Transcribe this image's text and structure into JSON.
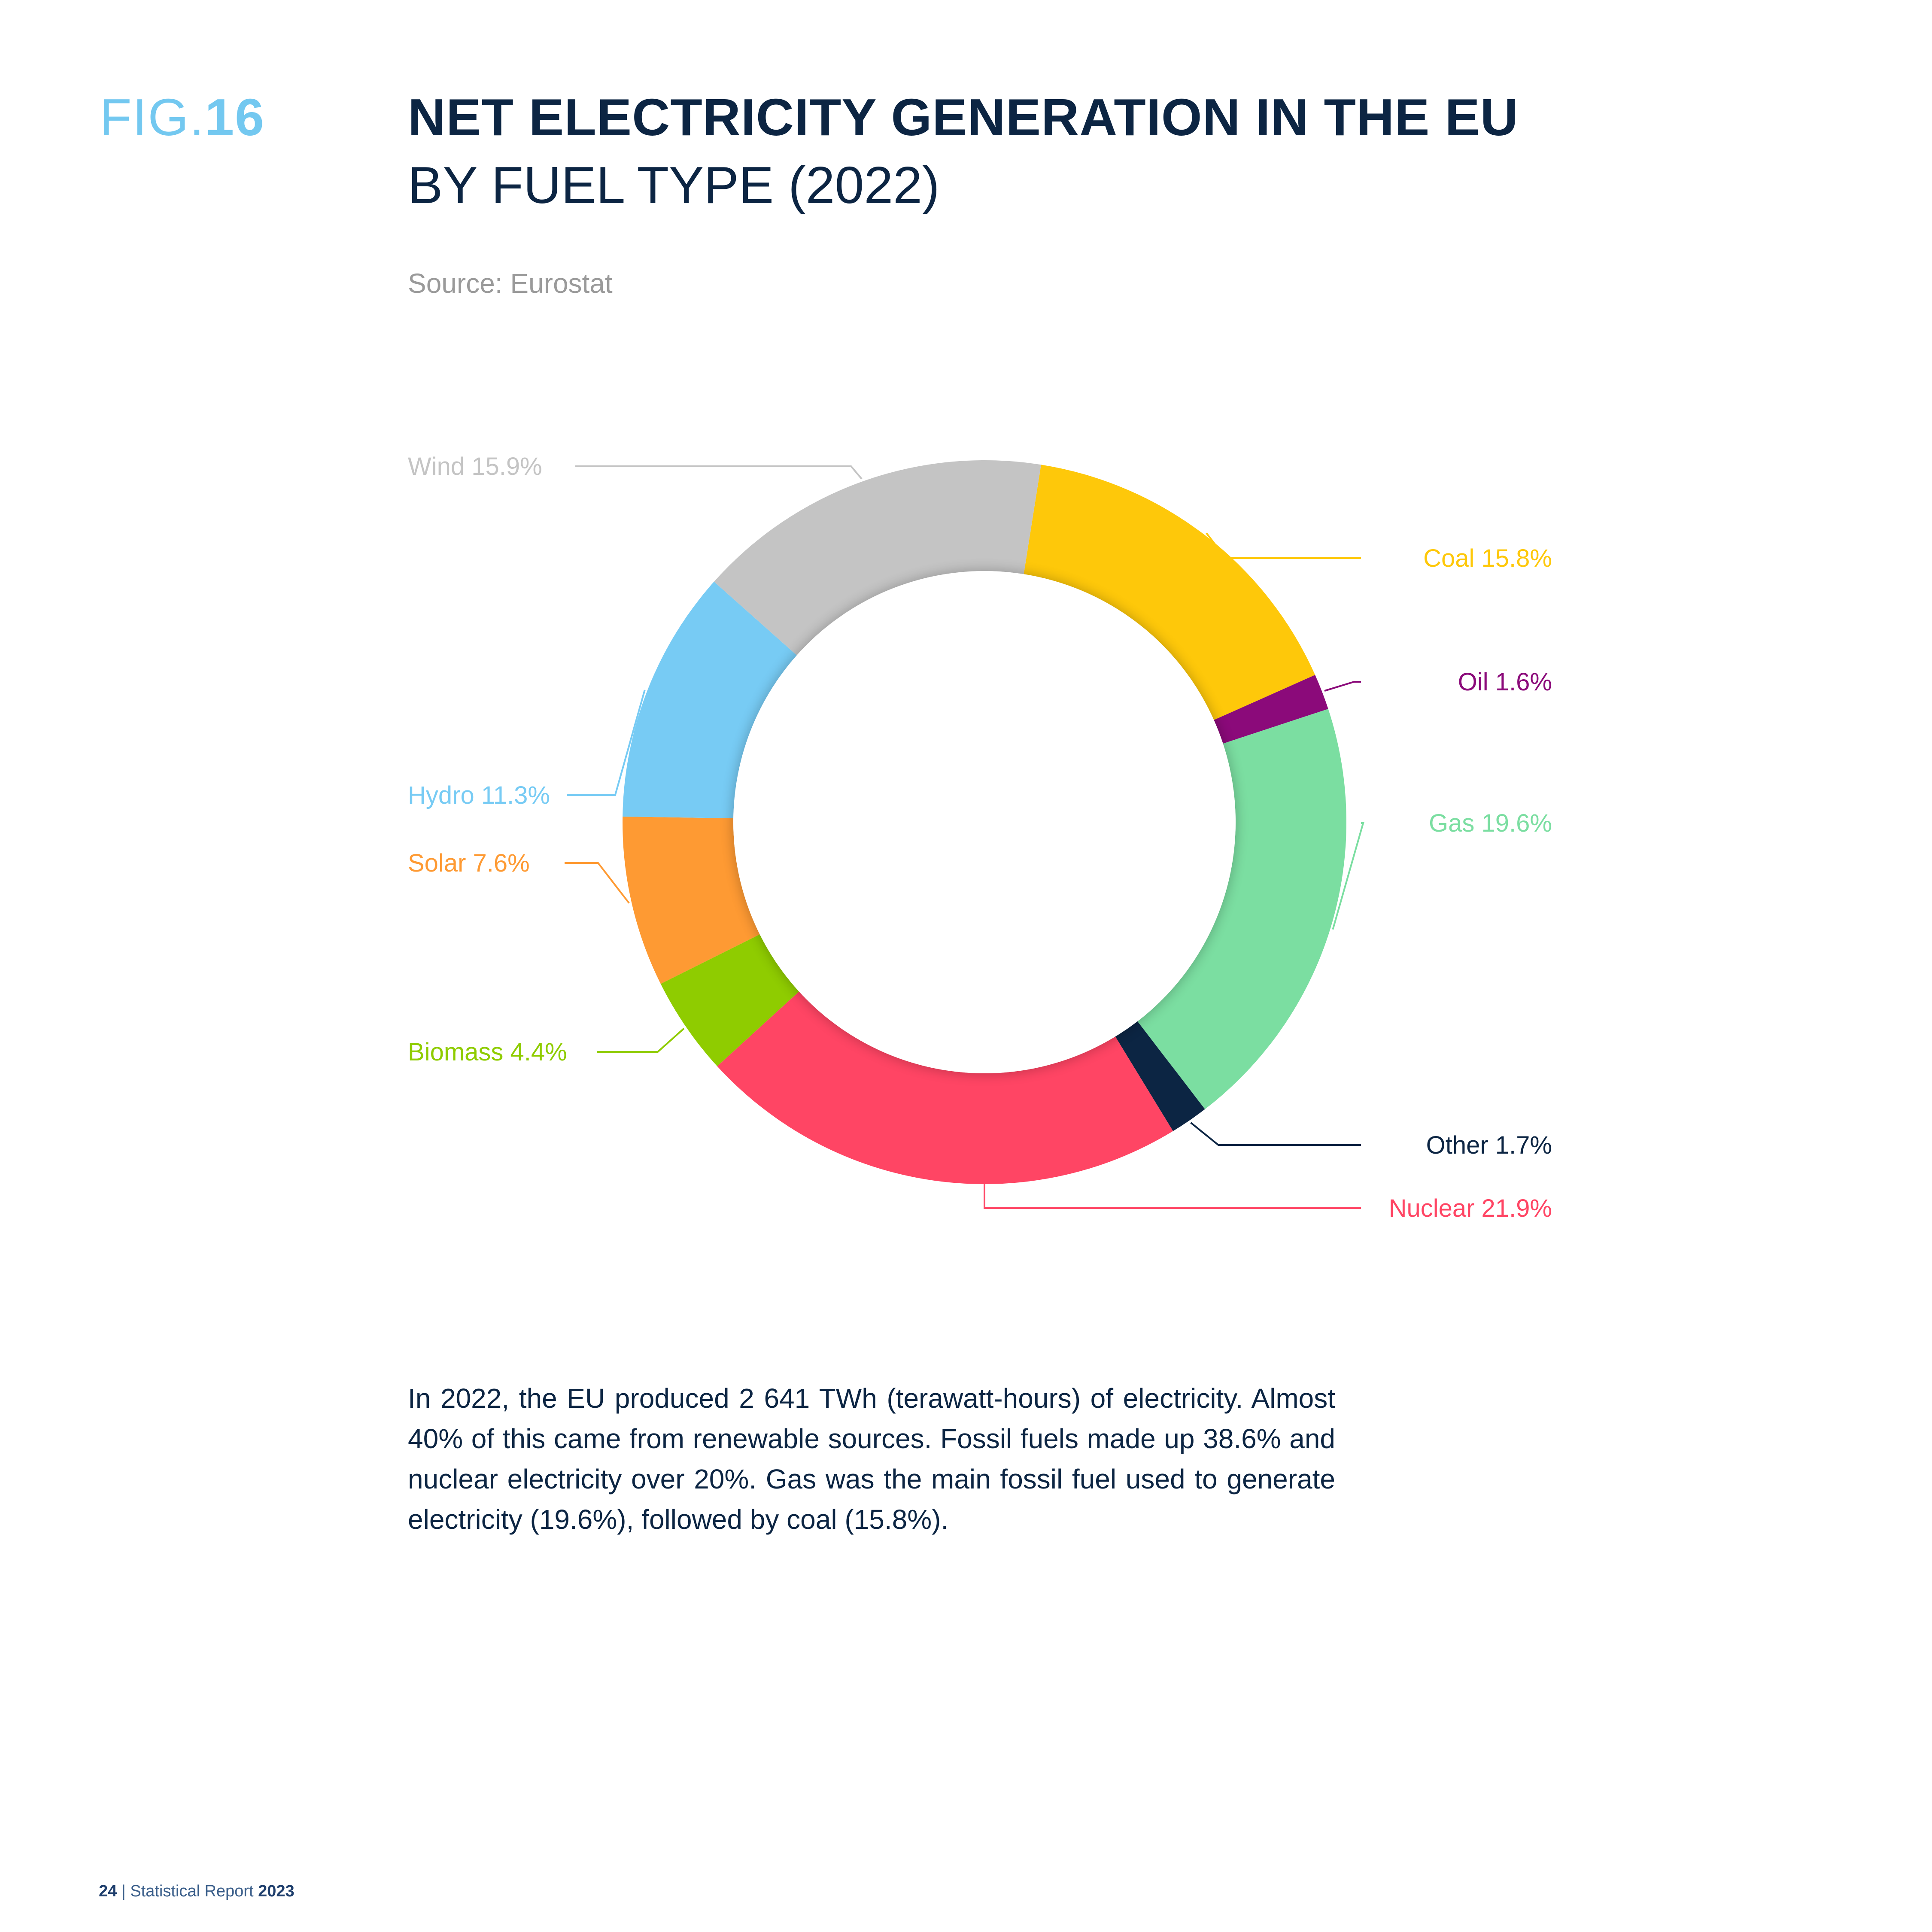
{
  "header": {
    "fig_prefix": "FIG.",
    "fig_number": "16",
    "title": "NET ELECTRICITY GENERATION IN THE EU",
    "subtitle": "BY FUEL TYPE (2022)",
    "source": "Source: Eurostat"
  },
  "chart_data": {
    "type": "pie",
    "donut": true,
    "slices": [
      {
        "name": "Coal",
        "value": 15.8,
        "label": "Coal 15.8%",
        "color": "#fec80a"
      },
      {
        "name": "Oil",
        "value": 1.6,
        "label": "Oil 1.6%",
        "color": "#8b0a7a"
      },
      {
        "name": "Gas",
        "value": 19.6,
        "label": "Gas 19.6%",
        "color": "#7bdea1"
      },
      {
        "name": "Other",
        "value": 1.7,
        "label": "Other 1.7%",
        "color": "#0c2543"
      },
      {
        "name": "Nuclear",
        "value": 21.9,
        "label": "Nuclear 21.9%",
        "color": "#ff4564"
      },
      {
        "name": "Biomass",
        "value": 4.4,
        "label": "Biomass 4.4%",
        "color": "#8fcc00"
      },
      {
        "name": "Solar",
        "value": 7.6,
        "label": "Solar 7.6%",
        "color": "#fe9a33"
      },
      {
        "name": "Hydro",
        "value": 11.3,
        "label": "Hydro 11.3%",
        "color": "#77cbf4"
      },
      {
        "name": "Wind",
        "value": 15.9,
        "label": "Wind 15.9%",
        "color": "#c4c4c4"
      }
    ]
  },
  "body_text": "In 2022, the EU produced 2 641 TWh (terawatt-hours) of electricity. Almost 40% of this came from renewable sources. Fossil fuels made up 38.6% and nuclear electricity over 20%. Gas was the main fossil fuel used to generate electricity (19.6%), followed by coal (15.8%).",
  "footer": {
    "page_number": "24",
    "separator": " | ",
    "report_name": "Statistical Report ",
    "year": "2023"
  }
}
